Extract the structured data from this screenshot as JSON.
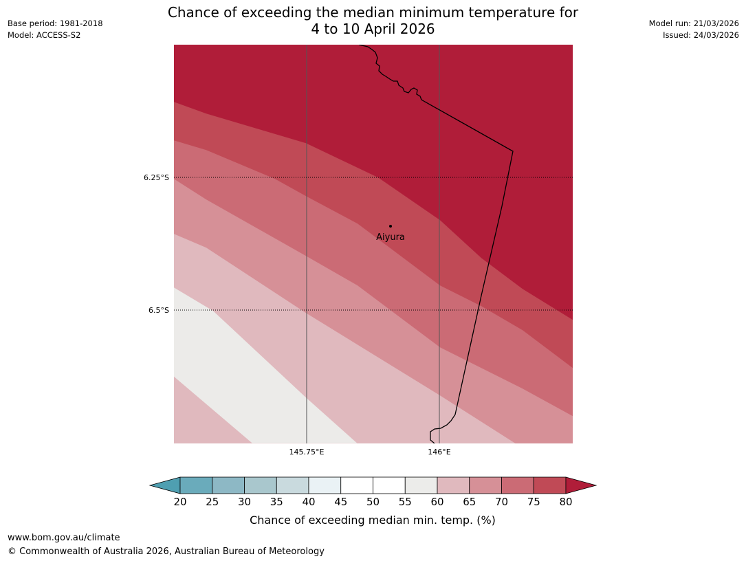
{
  "title": {
    "line1": "Chance of exceeding the median minimum temperature for",
    "line2": "4 to 10 April 2026"
  },
  "meta_left": {
    "base_period": "Base period: 1981-2018",
    "model": "Model: ACCESS-S2"
  },
  "meta_right": {
    "model_run": "Model run: 21/03/2026",
    "issued": "Issued: 24/03/2026"
  },
  "map": {
    "lat_labels": [
      "6.25°S",
      "6.5°S"
    ],
    "lon_labels": [
      "145.75°E",
      "146°E"
    ],
    "place": {
      "name": "Aiyura"
    },
    "bands": [
      {
        "min": 80,
        "color": "#b01d39"
      },
      {
        "min": 75,
        "color": "#c04a56"
      },
      {
        "min": 70,
        "color": "#cb6b75"
      },
      {
        "min": 65,
        "color": "#d69097"
      },
      {
        "min": 60,
        "color": "#e0b9be"
      },
      {
        "min": 55,
        "color": "#ecebe9"
      }
    ]
  },
  "colorbar": {
    "ticks": [
      "20",
      "25",
      "30",
      "35",
      "40",
      "45",
      "50",
      "55",
      "60",
      "65",
      "70",
      "75",
      "80"
    ],
    "colors": [
      "#6aabbb",
      "#8db8c5",
      "#a9c7cd",
      "#c9dade",
      "#eaf2f5",
      "#ffffff",
      "#ffffff",
      "#ececea",
      "#e0b9be",
      "#d69097",
      "#cb6b75",
      "#c04a56"
    ],
    "under_color": "#4f9fb1",
    "over_color": "#b01d39",
    "label": "Chance of exceeding median min. temp. (%)"
  },
  "footer": {
    "url": "www.bom.gov.au/climate",
    "copyright": "© Commonwealth of Australia 2026, Australian Bureau of Meteorology"
  }
}
